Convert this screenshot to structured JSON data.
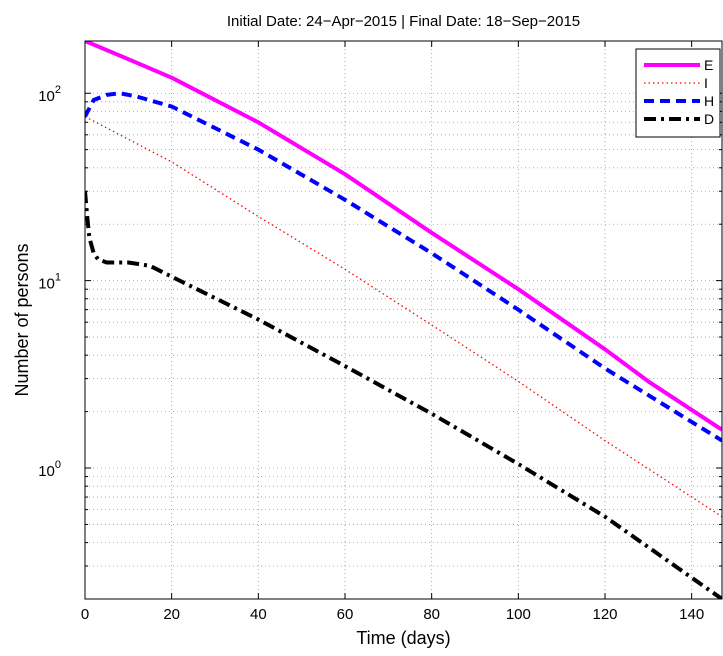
{
  "chart_data": {
    "type": "line",
    "title": "Initial Date: 24−Apr−2015 | Final Date: 18−Sep−2015",
    "xlabel": "Time (days)",
    "ylabel": "Number of persons",
    "x_scale": "linear",
    "y_scale": "log",
    "xlim": [
      0,
      147
    ],
    "ylim": [
      0.2,
      190
    ],
    "x_ticks": [
      {
        "value": 0,
        "label": "0"
      },
      {
        "value": 20,
        "label": "20"
      },
      {
        "value": 40,
        "label": "40"
      },
      {
        "value": 60,
        "label": "60"
      },
      {
        "value": 80,
        "label": "80"
      },
      {
        "value": 100,
        "label": "100"
      },
      {
        "value": 120,
        "label": "120"
      },
      {
        "value": 140,
        "label": "140"
      }
    ],
    "y_ticks": [
      {
        "value": 1,
        "base": "10",
        "exp": "0"
      },
      {
        "value": 10,
        "base": "10",
        "exp": "1"
      },
      {
        "value": 100,
        "base": "10",
        "exp": "2"
      }
    ],
    "grid": true,
    "legend_position": "top-right",
    "series": [
      {
        "name": "E",
        "color": "#ff00ff",
        "style": "solid",
        "points": [
          [
            0,
            190
          ],
          [
            10,
            152
          ],
          [
            20,
            121
          ],
          [
            40,
            70
          ],
          [
            60,
            37
          ],
          [
            80,
            18
          ],
          [
            100,
            9
          ],
          [
            120,
            4.3
          ],
          [
            130,
            2.9
          ],
          [
            147,
            1.6
          ]
        ]
      },
      {
        "name": "I",
        "color": "#ff0000",
        "style": "dotted",
        "points": [
          [
            0,
            75
          ],
          [
            20,
            43
          ],
          [
            40,
            22
          ],
          [
            60,
            11.5
          ],
          [
            80,
            5.8
          ],
          [
            100,
            2.9
          ],
          [
            120,
            1.4
          ],
          [
            147,
            0.55
          ]
        ]
      },
      {
        "name": "H",
        "color": "#0000ff",
        "style": "dashed",
        "points": [
          [
            0,
            75
          ],
          [
            2,
            92
          ],
          [
            5,
            98
          ],
          [
            8,
            100
          ],
          [
            12,
            96
          ],
          [
            20,
            85
          ],
          [
            40,
            50
          ],
          [
            60,
            27
          ],
          [
            80,
            14
          ],
          [
            100,
            7
          ],
          [
            120,
            3.4
          ],
          [
            147,
            1.4
          ]
        ]
      },
      {
        "name": "D",
        "color": "#000000",
        "style": "dashdot",
        "points": [
          [
            0,
            30
          ],
          [
            0.5,
            22
          ],
          [
            1,
            17
          ],
          [
            2,
            14
          ],
          [
            3,
            13
          ],
          [
            5,
            12.5
          ],
          [
            10,
            12.5
          ],
          [
            15,
            12
          ],
          [
            20,
            10.5
          ],
          [
            40,
            6.2
          ],
          [
            60,
            3.5
          ],
          [
            80,
            1.95
          ],
          [
            100,
            1.05
          ],
          [
            120,
            0.55
          ],
          [
            147,
            0.2
          ]
        ]
      }
    ]
  }
}
